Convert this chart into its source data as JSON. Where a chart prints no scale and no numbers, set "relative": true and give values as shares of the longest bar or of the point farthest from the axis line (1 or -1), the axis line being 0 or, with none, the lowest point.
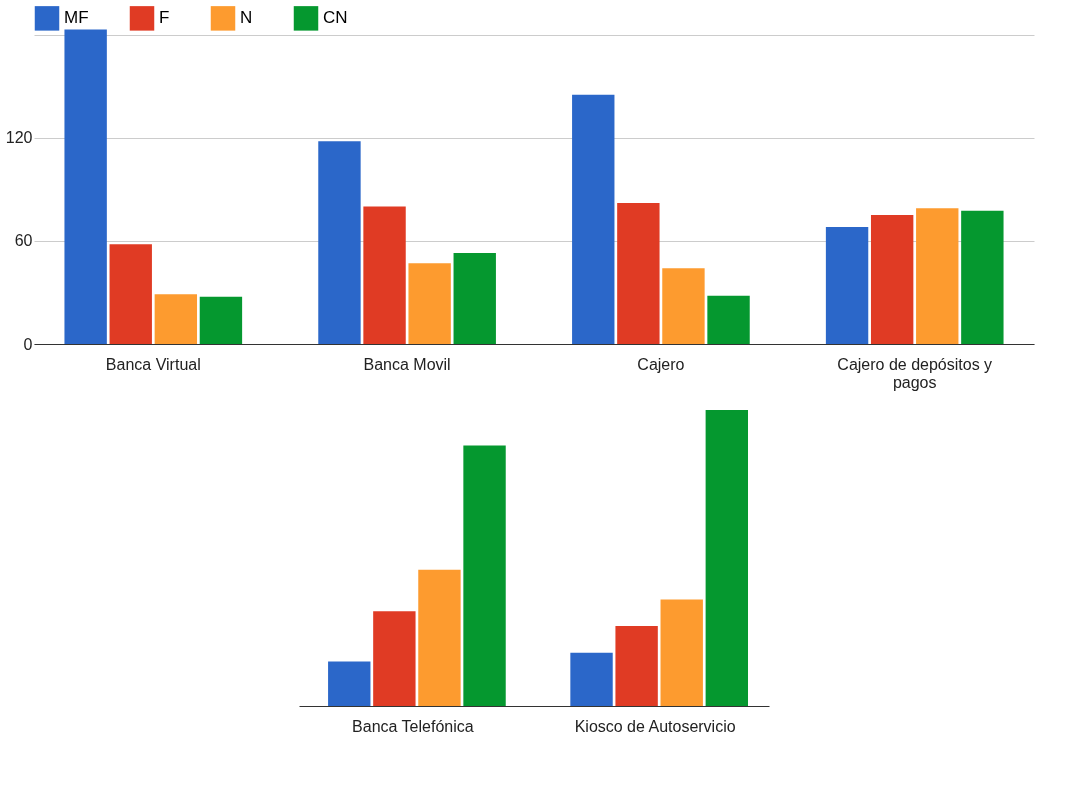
{
  "chart_data": [
    {
      "type": "bar",
      "categories": [
        "Banca Virtual",
        "Banca Movil",
        "Cajero",
        "Cajero de depósitos y pagos"
      ],
      "series": [
        {
          "name": "MF",
          "color": "#2b67c9",
          "values": [
            183,
            118,
            145,
            68
          ]
        },
        {
          "name": "F",
          "color": "#e03b24",
          "values": [
            58,
            80,
            82,
            75
          ]
        },
        {
          "name": "N",
          "color": "#fd9b2f",
          "values": [
            29,
            47,
            44,
            79
          ]
        },
        {
          "name": "CN",
          "color": "#05982f",
          "values": [
            27.5,
            53,
            28,
            77.5
          ]
        }
      ],
      "ylim": [
        0,
        185
      ],
      "yticks": [
        0,
        60,
        120,
        {
          "value": 180,
          "label": null
        }
      ],
      "grid": "y",
      "legend": "top left"
    },
    {
      "type": "bar",
      "categories": [
        "Banca Telefónica",
        "Kiosco de Autoservicio"
      ],
      "series": [
        {
          "name": "MF",
          "color": "#2b67c9",
          "values": [
            0.15,
            0.18
          ]
        },
        {
          "name": "F",
          "color": "#e03b24",
          "values": [
            0.32,
            0.27
          ]
        },
        {
          "name": "N",
          "color": "#fd9b2f",
          "values": [
            0.46,
            0.36
          ]
        },
        {
          "name": "CN",
          "color": "#05982f",
          "values": [
            0.88,
            1
          ]
        }
      ],
      "relative": true
    }
  ]
}
